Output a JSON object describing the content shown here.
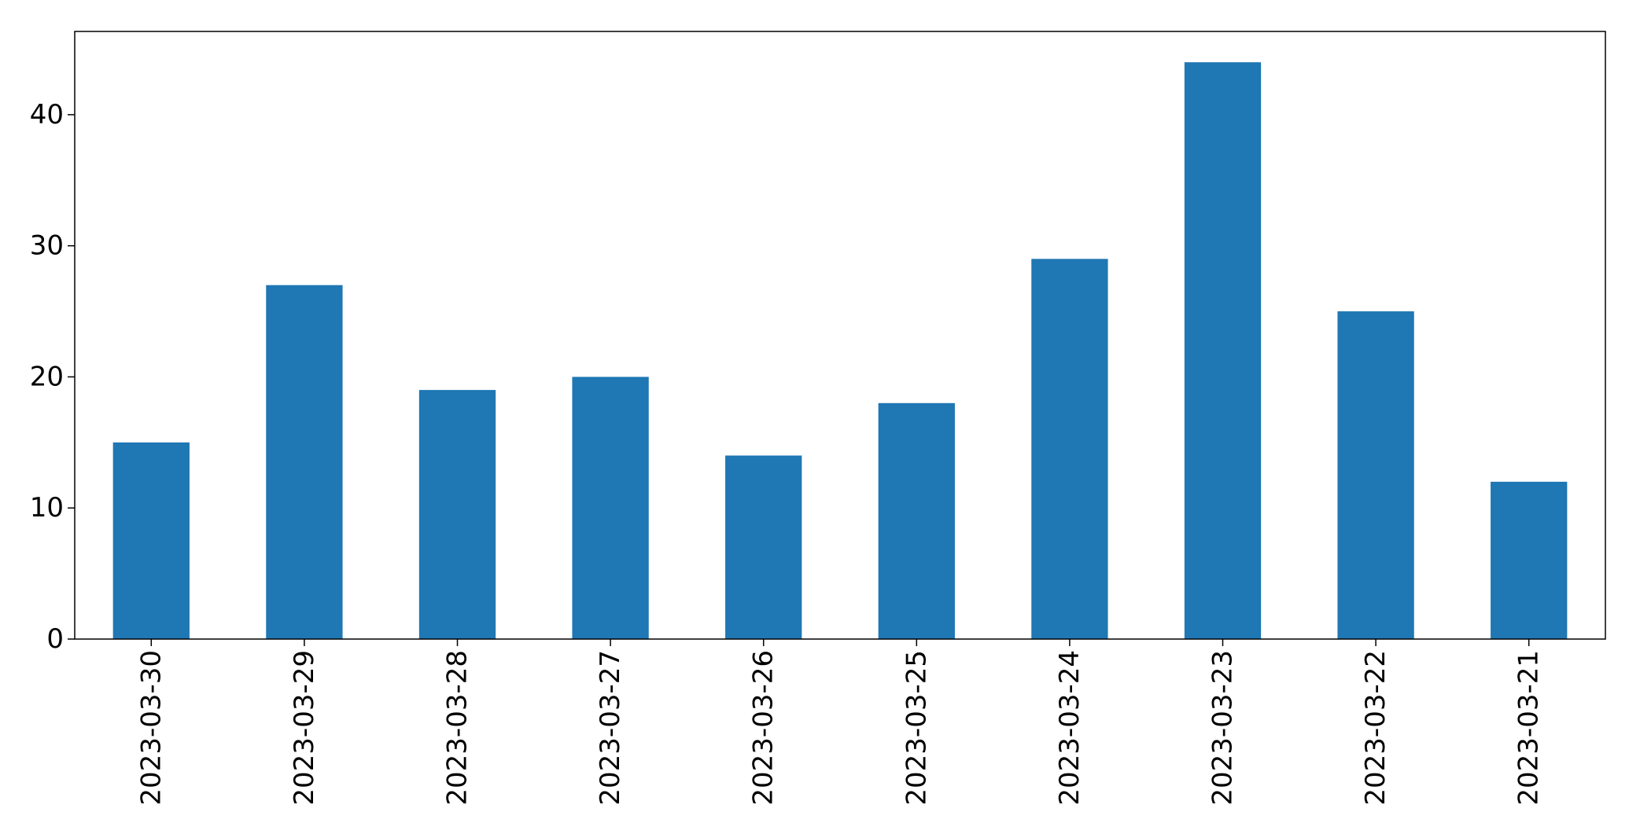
{
  "chart_data": {
    "type": "bar",
    "categories": [
      "2023-03-30",
      "2023-03-29",
      "2023-03-28",
      "2023-03-27",
      "2023-03-26",
      "2023-03-25",
      "2023-03-24",
      "2023-03-23",
      "2023-03-22",
      "2023-03-21"
    ],
    "values": [
      15,
      27,
      19,
      20,
      14,
      18,
      29,
      44,
      25,
      12
    ],
    "title": "",
    "xlabel": "",
    "ylabel": "",
    "ylim": [
      0,
      46.35
    ],
    "yticks": [
      0,
      10,
      20,
      30,
      40
    ],
    "ytick_labels": [
      "0",
      "10",
      "20",
      "30",
      "40"
    ],
    "grid": false,
    "legend": "none",
    "bar_color": "#1f77b4",
    "xtick_rotation": "vertical"
  }
}
